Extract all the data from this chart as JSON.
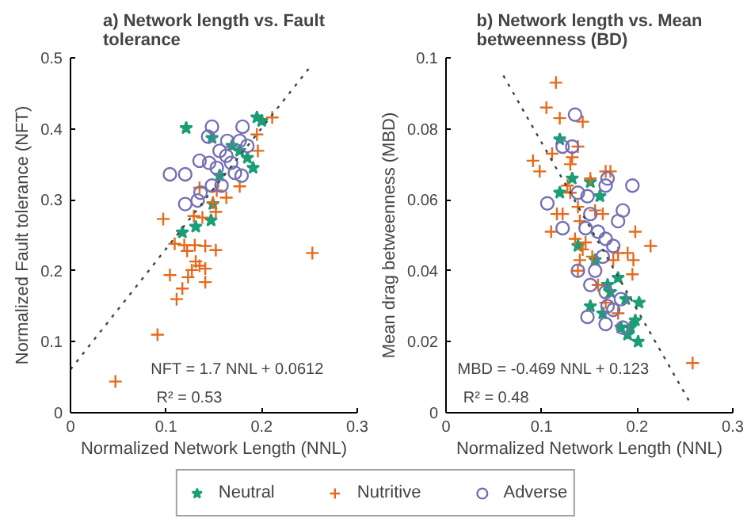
{
  "chart_data": [
    {
      "type": "scatter",
      "title": "a) Network length vs. Fault\ntolerance",
      "xlabel": "Normalized Network Length (NNL)",
      "ylabel": "Normalized Fault tolerance (NFT)",
      "xlim": [
        0,
        0.3
      ],
      "xticks": [
        0,
        0.1,
        0.2,
        0.3
      ],
      "ylim": [
        0,
        0.5
      ],
      "yticks": [
        0,
        0.1,
        0.2,
        0.3,
        0.4,
        0.5
      ],
      "grid": false,
      "annotations": [
        "NFT = 1.7 NNL + 0.0612",
        "R² = 0.53"
      ],
      "series": [
        {
          "color": "#1b9e77",
          "marker": "star",
          "x": [
            0.117,
            0.131,
            0.147,
            0.149,
            0.121,
            0.148,
            0.195,
            0.2,
            0.191,
            0.185,
            0.177,
            0.156,
            0.169
          ],
          "values": [
            0.254,
            0.262,
            0.271,
            0.294,
            0.401,
            0.387,
            0.416,
            0.411,
            0.345,
            0.359,
            0.369,
            0.334,
            0.376
          ]
        },
        {
          "color": "#e66a1a",
          "marker": "cross",
          "x": [
            0.047,
            0.091,
            0.111,
            0.117,
            0.104,
            0.123,
            0.127,
            0.135,
            0.141,
            0.141,
            0.131,
            0.109,
            0.119,
            0.122,
            0.13,
            0.141,
            0.152,
            0.253,
            0.097,
            0.129,
            0.138,
            0.152,
            0.135,
            0.149,
            0.163,
            0.177,
            0.211,
            0.196,
            0.195,
            0.153
          ],
          "values": [
            0.044,
            0.11,
            0.16,
            0.175,
            0.194,
            0.191,
            0.201,
            0.207,
            0.203,
            0.184,
            0.213,
            0.238,
            0.236,
            0.228,
            0.236,
            0.235,
            0.229,
            0.225,
            0.273,
            0.277,
            0.275,
            0.283,
            0.317,
            0.296,
            0.303,
            0.319,
            0.416,
            0.369,
            0.392,
            0.313
          ]
        },
        {
          "color": "#7570b3",
          "marker": "circle",
          "x": [
            0.104,
            0.12,
            0.12,
            0.133,
            0.136,
            0.148,
            0.144,
            0.135,
            0.145,
            0.153,
            0.163,
            0.164,
            0.172,
            0.179,
            0.18,
            0.177,
            0.156,
            0.158,
            0.148,
            0.168,
            0.185
          ],
          "values": [
            0.336,
            0.336,
            0.294,
            0.299,
            0.31,
            0.403,
            0.389,
            0.355,
            0.352,
            0.345,
            0.362,
            0.383,
            0.338,
            0.334,
            0.403,
            0.383,
            0.369,
            0.32,
            0.32,
            0.352,
            0.376
          ]
        },
        {
          "type": "line",
          "color": "#444444",
          "line_style": "dotted",
          "x": [
            0,
            0.25
          ],
          "values": [
            0.061,
            0.486
          ]
        }
      ]
    },
    {
      "type": "scatter",
      "title": "b) Network length vs. Mean\nbetweenness (BD)",
      "xlabel": "Normalized Network Length (NNL)",
      "ylabel": "Mean drag betweenness (MBD)",
      "xlim": [
        0,
        0.3
      ],
      "xticks": [
        0,
        0.1,
        0.2,
        0.3
      ],
      "ylim": [
        0,
        0.1
      ],
      "yticks": [
        0,
        0.02,
        0.04,
        0.06,
        0.08,
        0.1
      ],
      "grid": false,
      "legend": "bottom",
      "annotations": [
        "MBD = -0.469 NNL + 0.123",
        "R² = 0.48"
      ],
      "series": [
        {
          "name": "Neutral",
          "color": "#1b9e77",
          "marker": "star",
          "x": [
            0.119,
            0.132,
            0.119,
            0.151,
            0.161,
            0.138,
            0.156,
            0.169,
            0.18,
            0.172,
            0.188,
            0.202,
            0.151,
            0.164,
            0.183,
            0.19,
            0.198,
            0.201,
            0.193
          ],
          "values": [
            0.077,
            0.066,
            0.062,
            0.065,
            0.061,
            0.047,
            0.043,
            0.036,
            0.038,
            0.034,
            0.032,
            0.031,
            0.03,
            0.028,
            0.024,
            0.022,
            0.026,
            0.02,
            0.024
          ]
        },
        {
          "name": "Nutritive",
          "color": "#e66a1a",
          "marker": "cross",
          "x": [
            0.115,
            0.105,
            0.119,
            0.143,
            0.091,
            0.098,
            0.111,
            0.13,
            0.138,
            0.132,
            0.127,
            0.13,
            0.167,
            0.172,
            0.151,
            0.116,
            0.122,
            0.11,
            0.135,
            0.14,
            0.138,
            0.156,
            0.164,
            0.146,
            0.14,
            0.143,
            0.153,
            0.175,
            0.18,
            0.19,
            0.196,
            0.195,
            0.198,
            0.214,
            0.138,
            0.159,
            0.167,
            0.18,
            0.258
          ],
          "values": [
            0.093,
            0.086,
            0.083,
            0.082,
            0.071,
            0.068,
            0.073,
            0.07,
            0.075,
            0.072,
            0.064,
            0.062,
            0.068,
            0.068,
            0.066,
            0.056,
            0.056,
            0.051,
            0.049,
            0.054,
            0.058,
            0.057,
            0.056,
            0.048,
            0.043,
            0.046,
            0.044,
            0.043,
            0.045,
            0.045,
            0.043,
            0.039,
            0.051,
            0.047,
            0.04,
            0.036,
            0.031,
            0.028,
            0.014
          ]
        },
        {
          "name": "Adverse",
          "color": "#7570b3",
          "marker": "circle",
          "x": [
            0.135,
            0.122,
            0.132,
            0.106,
            0.122,
            0.138,
            0.148,
            0.167,
            0.169,
            0.195,
            0.185,
            0.18,
            0.151,
            0.146,
            0.159,
            0.167,
            0.175,
            0.164,
            0.138,
            0.156,
            0.151,
            0.167,
            0.183,
            0.148,
            0.167,
            0.175,
            0.185,
            0.169
          ],
          "values": [
            0.084,
            0.075,
            0.075,
            0.059,
            0.052,
            0.062,
            0.061,
            0.064,
            0.066,
            0.064,
            0.057,
            0.054,
            0.056,
            0.052,
            0.051,
            0.049,
            0.047,
            0.044,
            0.04,
            0.04,
            0.036,
            0.034,
            0.032,
            0.027,
            0.025,
            0.029,
            0.024,
            0.03
          ]
        },
        {
          "type": "line",
          "color": "#444444",
          "line_style": "dotted",
          "x": [
            0.06,
            0.255
          ],
          "values": [
            0.095,
            0.003
          ]
        }
      ]
    }
  ]
}
